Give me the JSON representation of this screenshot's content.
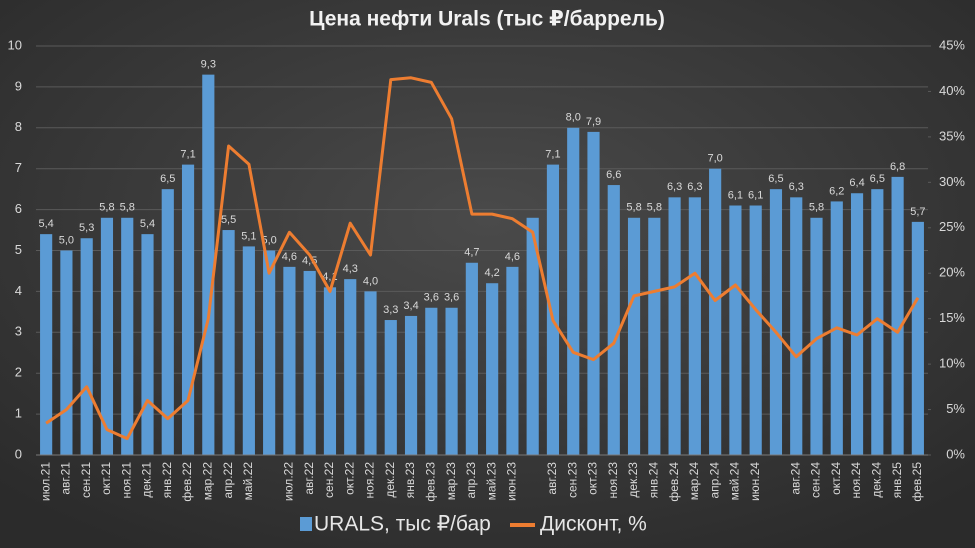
{
  "chart_data": {
    "type": "bar",
    "title": "Цена нефти Urals (тыс ₽/баррель)",
    "categories": [
      "июл.21",
      "авг.21",
      "сен.21",
      "окт.21",
      "ноя.21",
      "дек.21",
      "янв.22",
      "фев.22",
      "мар.22",
      "апр.22",
      "май.22",
      null,
      "июл.22",
      "авг.22",
      "сен.22",
      "окт.22",
      "ноя.22",
      "дек.22",
      "янв.23",
      "фев.23",
      "мар.23",
      "апр.23",
      "май.23",
      "июн.23",
      null,
      "авг.23",
      "сен.23",
      "окт.23",
      "ноя.23",
      "дек.23",
      "янв.24",
      "фев.24",
      "мар.24",
      "апр.24",
      "май.24",
      "июн.24",
      null,
      "авг.24",
      "сен.24",
      "окт.24",
      "ноя.24",
      "дек.24",
      "янв.25",
      "фев.25"
    ],
    "series": [
      {
        "name": "URALS, тыс ₽/бар",
        "color": "#5b9bd5",
        "values": [
          5.4,
          5.0,
          5.3,
          5.8,
          5.8,
          5.4,
          6.5,
          7.1,
          9.3,
          5.5,
          5.1,
          5.0,
          4.6,
          4.5,
          4.1,
          4.3,
          4.0,
          3.3,
          3.4,
          3.6,
          3.6,
          4.7,
          4.2,
          4.6,
          5.8,
          7.1,
          8.0,
          7.9,
          6.6,
          5.8,
          5.8,
          6.3,
          6.3,
          7.0,
          6.1,
          6.1,
          6.5,
          6.3,
          5.8,
          6.2,
          6.4,
          6.5,
          6.8,
          5.7
        ],
        "value_labels": [
          "5,4",
          "5,0",
          "5,3",
          "5,8",
          "5,8",
          "5,4",
          "6,5",
          "7,1",
          "9,3",
          "5,5",
          "5,1",
          "5,0",
          "4,6",
          "4,5",
          "4,1",
          "4,3",
          "4,0",
          "3,3",
          "3,4",
          "3,6",
          "3,6",
          "4,7",
          "4,2",
          "4,6",
          null,
          "7,1",
          "8,0",
          "7,9",
          "6,6",
          "5,8",
          "5,8",
          "6,3",
          "6,3",
          "7,0",
          "6,1",
          "6,1",
          "6,5",
          "6,3",
          "5,8",
          "6,2",
          "6,4",
          "6,5",
          "6,8",
          "5,7"
        ]
      },
      {
        "name": "Дисконт, %",
        "color": "#ed7d31",
        "axis": "y2",
        "type": "line",
        "values": [
          3.5,
          5,
          7.5,
          2.8,
          1.8,
          6,
          4,
          6,
          15,
          34,
          32,
          20,
          24.5,
          22,
          18,
          25.5,
          22,
          41.3,
          41.5,
          41,
          37,
          26.5,
          26.5,
          26,
          24.5,
          14.8,
          11.3,
          10.5,
          12.3,
          17.5,
          18,
          18.5,
          20,
          17,
          18.7,
          16,
          13.5,
          10.8,
          12.8,
          14,
          13.2,
          15,
          13.5,
          17.3
        ]
      }
    ],
    "ylim": [
      0,
      10
    ],
    "yticks": [
      0,
      1,
      2,
      3,
      4,
      5,
      6,
      7,
      8,
      9,
      10
    ],
    "y2lim": [
      0,
      45
    ],
    "y2ticks": [
      {
        "value": 0,
        "label": "0%"
      },
      {
        "value": 5,
        "label": "5%"
      },
      {
        "value": 10,
        "label": "10%"
      },
      {
        "value": 15,
        "label": "15%"
      },
      {
        "value": 20,
        "label": "20%"
      },
      {
        "value": 25,
        "label": "25%"
      },
      {
        "value": 30,
        "label": "30%"
      },
      {
        "value": 35,
        "label": "35%"
      },
      {
        "value": 40,
        "label": "40%"
      },
      {
        "value": 45,
        "label": "45%"
      }
    ],
    "grid": true,
    "legend": "bottom"
  }
}
